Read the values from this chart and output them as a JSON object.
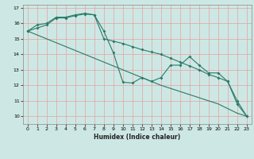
{
  "title": "",
  "xlabel": "Humidex (Indice chaleur)",
  "bg_color": "#cde8e4",
  "grid_color": "#e8a0a0",
  "line_color": "#2a7a6a",
  "line1_x": [
    0,
    1,
    2,
    3,
    4,
    5,
    6,
    7,
    8,
    9,
    10,
    11,
    12,
    13,
    14,
    15,
    16,
    17,
    18,
    19,
    20,
    21,
    22,
    23
  ],
  "line1_y": [
    15.5,
    15.25,
    15.0,
    14.75,
    14.5,
    14.25,
    14.0,
    13.75,
    13.5,
    13.25,
    13.0,
    12.75,
    12.5,
    12.25,
    12.0,
    11.8,
    11.6,
    11.4,
    11.2,
    11.0,
    10.8,
    10.5,
    10.2,
    10.0
  ],
  "line2_x": [
    0,
    1,
    2,
    3,
    4,
    5,
    6,
    7,
    8,
    9,
    10,
    11,
    12,
    13,
    14,
    15,
    16,
    17,
    18,
    19,
    20,
    21,
    22,
    23
  ],
  "line2_y": [
    15.5,
    15.9,
    16.0,
    16.4,
    16.4,
    16.55,
    16.65,
    16.55,
    15.5,
    14.1,
    12.2,
    12.15,
    12.5,
    12.25,
    12.5,
    13.3,
    13.3,
    13.85,
    13.3,
    12.8,
    12.8,
    12.25,
    10.8,
    10.0
  ],
  "line3_x": [
    0,
    1,
    2,
    3,
    4,
    5,
    6,
    7,
    8,
    9,
    10,
    11,
    12,
    13,
    14,
    15,
    16,
    17,
    18,
    19,
    20,
    21,
    22,
    23
  ],
  "line3_y": [
    15.5,
    15.7,
    15.9,
    16.35,
    16.35,
    16.5,
    16.6,
    16.55,
    15.0,
    14.85,
    14.7,
    14.5,
    14.3,
    14.15,
    14.0,
    13.75,
    13.5,
    13.25,
    13.0,
    12.7,
    12.5,
    12.25,
    11.0,
    10.0
  ],
  "ylim": [
    9.5,
    17.2
  ],
  "xlim": [
    -0.5,
    23.5
  ],
  "yticks": [
    10,
    11,
    12,
    13,
    14,
    15,
    16,
    17
  ],
  "xticks": [
    0,
    1,
    2,
    3,
    4,
    5,
    6,
    7,
    8,
    9,
    10,
    11,
    12,
    13,
    14,
    15,
    16,
    17,
    18,
    19,
    20,
    21,
    22,
    23
  ]
}
